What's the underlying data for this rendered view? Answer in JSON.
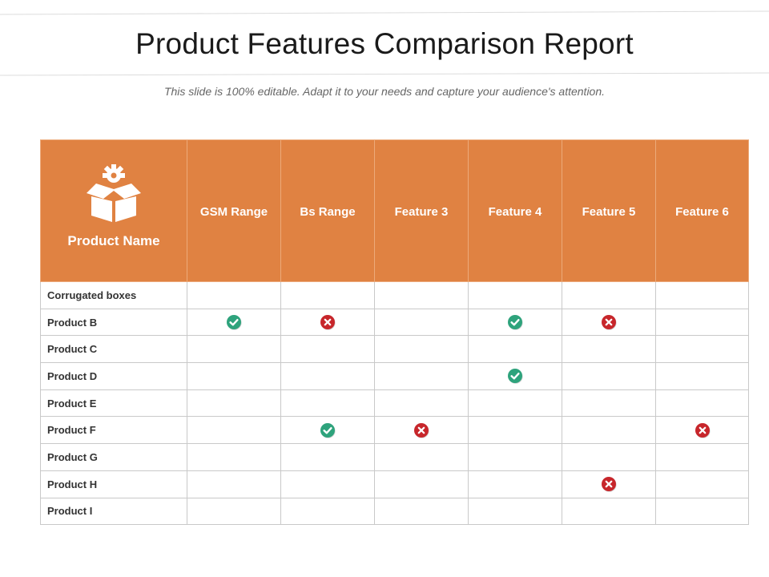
{
  "title": "Product Features Comparison Report",
  "subtitle": "This slide is 100% editable. Adapt it to your needs and capture your audience's attention.",
  "colors": {
    "header_bg": "#e08242",
    "check": "#2ea37c",
    "cross": "#c7262b",
    "border": "#c9c9c9"
  },
  "table": {
    "name_header": "Product Name",
    "name_header_icon": "box-gear-icon",
    "columns": [
      "GSM Range",
      "Bs Range",
      "Feature 3",
      "Feature 4",
      "Feature 5",
      "Feature 6"
    ],
    "rows": [
      {
        "name": "Corrugated boxes",
        "cells": [
          "",
          "",
          "",
          "",
          "",
          ""
        ]
      },
      {
        "name": "Product B",
        "cells": [
          "check",
          "cross",
          "",
          "check",
          "cross",
          ""
        ]
      },
      {
        "name": "Product C",
        "cells": [
          "",
          "",
          "",
          "",
          "",
          ""
        ]
      },
      {
        "name": "Product D",
        "cells": [
          "",
          "",
          "",
          "check",
          "",
          ""
        ]
      },
      {
        "name": "Product E",
        "cells": [
          "",
          "",
          "",
          "",
          "",
          ""
        ]
      },
      {
        "name": "Product F",
        "cells": [
          "",
          "check",
          "cross",
          "",
          "",
          "cross"
        ]
      },
      {
        "name": "Product G",
        "cells": [
          "",
          "",
          "",
          "",
          "",
          ""
        ]
      },
      {
        "name": "Product H",
        "cells": [
          "",
          "",
          "",
          "",
          "cross",
          ""
        ]
      },
      {
        "name": "Product I",
        "cells": [
          "",
          "",
          "",
          "",
          "",
          ""
        ]
      }
    ]
  }
}
